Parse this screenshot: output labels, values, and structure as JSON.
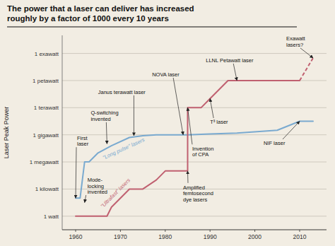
{
  "chart_data": {
    "type": "line",
    "title": "The power that a laser can deliver has increased\nroughly by a factor of 1000 every 10 years",
    "y_label": "Laser Peak Power",
    "xlim": [
      1957,
      2016
    ],
    "ylim": [
      -1.5,
      20
    ],
    "xticks": [
      1960,
      1970,
      1980,
      1990,
      2000,
      2010
    ],
    "yticks": [
      {
        "value": 0,
        "label": "1 watt"
      },
      {
        "value": 3,
        "label": "1 kilowatt"
      },
      {
        "value": 6,
        "label": "1 megawatt"
      },
      {
        "value": 9,
        "label": "1 gigawatt"
      },
      {
        "value": 12,
        "label": "1 terawatt"
      },
      {
        "value": 15,
        "label": "1 petawatt"
      },
      {
        "value": 18,
        "label": "1 exawatt"
      }
    ],
    "grid": true,
    "series": [
      {
        "name": "\"Long pulse\" lasers",
        "color": "#7aaad0",
        "line_style": "solid",
        "x": [
          1960,
          1961,
          1962,
          1963,
          1965,
          1968,
          1972,
          1975,
          1978,
          1982,
          1985,
          1990,
          1996,
          2005,
          2010,
          2013
        ],
        "values": [
          2,
          2,
          6,
          6,
          7,
          7.8,
          8.7,
          8.9,
          9.0,
          9.0,
          9.0,
          9.1,
          9.2,
          9.5,
          10.5,
          10.5
        ]
      },
      {
        "name": "\"Ultrafast\" lasers",
        "color": "#c06070",
        "line_style": "solid",
        "x": [
          1960,
          1967,
          1968,
          1972,
          1975,
          1978,
          1980,
          1983,
          1985,
          1985,
          1988,
          1990,
          1994,
          1996,
          2005,
          2010
        ],
        "values": [
          0,
          0,
          1,
          3,
          3,
          4,
          5,
          5,
          5,
          12,
          12,
          13,
          15,
          15,
          15,
          15
        ]
      },
      {
        "color": "#c06070",
        "line_style": "dashed",
        "x": [
          2010,
          2013
        ],
        "values": [
          15,
          17.5
        ]
      }
    ],
    "annotations": [
      {
        "text": "First\nlaser",
        "x": 1960,
        "y": 2.0
      },
      {
        "text": "Mode-\nlocking\ninvented",
        "x": 1962,
        "y": 1.5
      },
      {
        "text": "Q-switching\ninvented",
        "x": 1967,
        "y": 8.0
      },
      {
        "text": "Janus terawatt laser",
        "x": 1973,
        "y": 8.9
      },
      {
        "text": "NOVA laser",
        "x": 1984,
        "y": 9.0
      },
      {
        "text": "LLNL Petawatt laser",
        "x": 1996,
        "y": 15.0
      },
      {
        "text": "Exawatt\nlasers?",
        "x": 2013,
        "y": 17.5
      },
      {
        "text": "Amplified\nfemtosecond\ndye lasers",
        "x": 1985,
        "y": 5.0
      },
      {
        "text": "Invention\nof CPA",
        "x": 1985,
        "y": 12.0
      },
      {
        "text": "T³ laser",
        "x": 1990,
        "y": 13.0
      },
      {
        "text": "NIF laser",
        "x": 2010,
        "y": 10.5
      }
    ]
  }
}
